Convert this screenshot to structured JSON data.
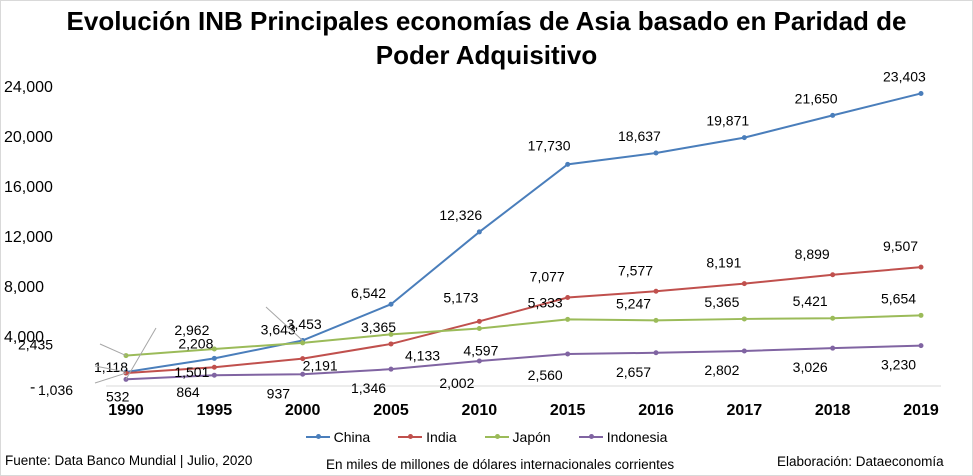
{
  "title_line1": "Evolución INB Principales economías de Asia basado en Paridad de",
  "title_line2": "Poder Adquisitivo",
  "footer": {
    "source": "Fuente: Data Banco Mundial | Julio, 2020",
    "units": "En miles de millones de dólares internacionales corrientes",
    "credit": "Elaboración: Dataeconomía"
  },
  "chart_data": {
    "type": "line",
    "title": "Evolución INB Principales economías de Asia basado en Paridad de Poder Adquisitivo",
    "categories": [
      "1990",
      "1995",
      "2000",
      "2005",
      "2010",
      "2015",
      "2016",
      "2017",
      "2018",
      "2019"
    ],
    "y_ticks": [
      "-",
      "4,000",
      "8,000",
      "12,000",
      "16,000",
      "20,000",
      "24,000"
    ],
    "ylim": [
      0,
      24000
    ],
    "grid": false,
    "legend_position": "bottom",
    "series": [
      {
        "name": "China",
        "color": "#4a7ebb",
        "values": [
          1118,
          2208,
          3643,
          6542,
          12326,
          17730,
          18637,
          19871,
          21650,
          23403
        ],
        "labels": [
          "1,118",
          "2,208",
          "3,643",
          "6,542",
          "12,326",
          "17,730",
          "18,637",
          "19,871",
          "21,650",
          "23,403"
        ]
      },
      {
        "name": "India",
        "color": "#c0504d",
        "values": [
          1036,
          1501,
          2191,
          3365,
          5173,
          7077,
          7577,
          8191,
          8899,
          9507
        ],
        "labels": [
          "1,036",
          "1,501",
          "2,191",
          "3,365",
          "5,173",
          "7,077",
          "7,577",
          "8,191",
          "8,899",
          "9,507"
        ]
      },
      {
        "name": "Japón",
        "color": "#9bbb59",
        "values": [
          2435,
          2962,
          3453,
          4133,
          4597,
          5333,
          5247,
          5365,
          5421,
          5654
        ],
        "labels": [
          "2,435",
          "2,962",
          "3,453",
          "4,133",
          "4,597",
          "5,333",
          "5,247",
          "5,365",
          "5,421",
          "5,654"
        ]
      },
      {
        "name": "Indonesia",
        "color": "#8064a2",
        "values": [
          532,
          864,
          937,
          1346,
          2002,
          2560,
          2657,
          2802,
          3026,
          3230
        ],
        "labels": [
          "532",
          "864",
          "937",
          "1,346",
          "2,002",
          "2,560",
          "2,657",
          "2,802",
          "3,026",
          "3,230"
        ]
      }
    ]
  }
}
